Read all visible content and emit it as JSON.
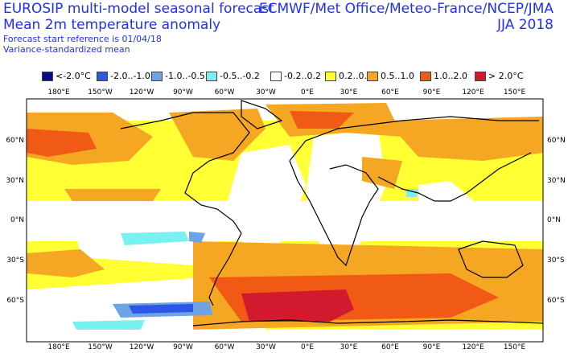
{
  "header": {
    "title_line1": "EUROSIP multi-model seasonal forecast",
    "title_line2": "Mean 2m temperature anomaly",
    "sub_line1": "Forecast start reference is 01/04/18",
    "sub_line2": "Variance-standardized mean",
    "agencies": "ECMWF/Met Office/Meteo-France/NCEP/JMA",
    "season": "JJA 2018"
  },
  "legend": [
    {
      "label": "<-2.0°C",
      "color": "#0a0a8c"
    },
    {
      "label": "-2.0..-1.0",
      "color": "#2e56e6"
    },
    {
      "label": "-1.0..-0.5",
      "color": "#6ea3e6"
    },
    {
      "label": "-0.5..-0.2",
      "color": "#7af0f0"
    },
    {
      "label": "-0.2..0.2",
      "color": "#ffffff"
    },
    {
      "label": "0.2..0.5",
      "color": "#ffff33"
    },
    {
      "label": "0.5..1.0",
      "color": "#f5a623"
    },
    {
      "label": "1.0..2.0",
      "color": "#f05a14"
    },
    {
      "label": "> 2.0°C",
      "color": "#d2192d"
    }
  ],
  "axes": {
    "lon_labels": [
      "180°E",
      "150°W",
      "120°W",
      "90°W",
      "60°W",
      "30°W",
      "0°E",
      "30°E",
      "60°E",
      "90°E",
      "120°E",
      "150°E"
    ],
    "lat_labels": [
      "60°N",
      "30°N",
      "0°N",
      "30°S",
      "60°S"
    ]
  }
}
